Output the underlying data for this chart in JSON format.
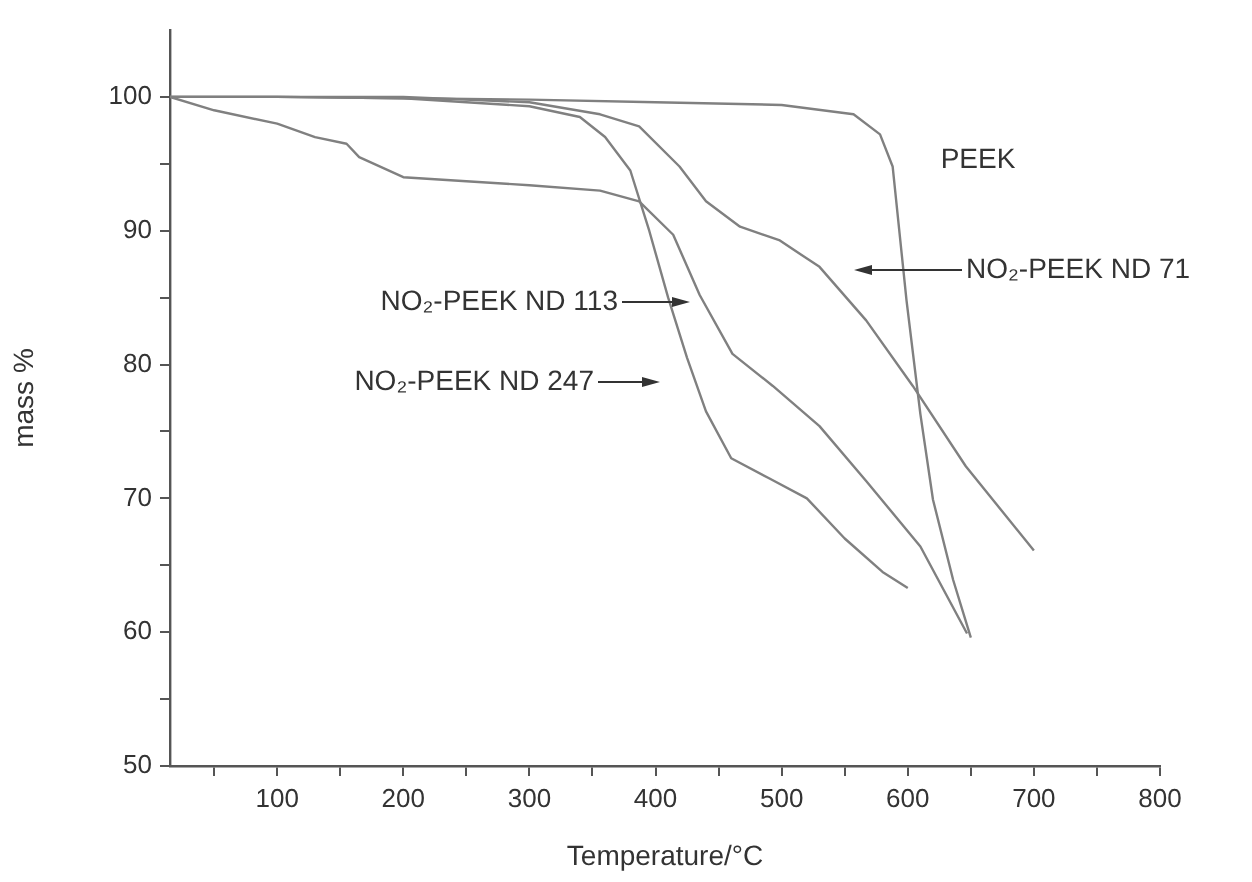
{
  "chart_data": {
    "type": "line",
    "xlabel": "Temperature/°C",
    "ylabel": "mass %",
    "xlim": [
      15,
      800
    ],
    "ylim": [
      50,
      105
    ],
    "xticks": [
      {
        "value": 50,
        "label": null
      },
      100,
      {
        "value": 150,
        "label": null
      },
      200,
      {
        "value": 250,
        "label": null
      },
      300,
      {
        "value": 350,
        "label": null
      },
      400,
      {
        "value": 450,
        "label": null
      },
      500,
      {
        "value": 550,
        "label": null
      },
      600,
      {
        "value": 650,
        "label": null
      },
      700,
      {
        "value": 750,
        "label": null
      },
      800
    ],
    "yticks": [
      50,
      {
        "value": 55,
        "label": null
      },
      60,
      {
        "value": 65,
        "label": null
      },
      70,
      {
        "value": 75,
        "label": null
      },
      80,
      {
        "value": 85,
        "label": null
      },
      90,
      {
        "value": 95,
        "label": null
      },
      100
    ],
    "marker": "none",
    "line_style": "solid",
    "series": [
      {
        "color": "#808080",
        "x": [
          15,
          100,
          200,
          300,
          400,
          500,
          557,
          578,
          588,
          599,
          610,
          620,
          636,
          650
        ],
        "values": [
          100,
          100,
          99.9,
          99.8,
          99.6,
          99.4,
          98.7,
          97.2,
          94.8,
          84.8,
          76.3,
          69.9,
          63.9,
          59.6
        ]
      },
      {
        "color": "#808080",
        "x": [
          15,
          100,
          200,
          300,
          356,
          387,
          419,
          440,
          467,
          498,
          530,
          567,
          604,
          646,
          700
        ],
        "values": [
          100,
          100,
          100,
          99.6,
          98.7,
          97.8,
          94.8,
          92.2,
          90.3,
          89.3,
          87.3,
          83.3,
          78.4,
          72.4,
          66.1
        ]
      },
      {
        "color": "#808080",
        "x": [
          15,
          50,
          100,
          130,
          155,
          165,
          200,
          250,
          300,
          356,
          387,
          414,
          435,
          461,
          493,
          530,
          567,
          610,
          647
        ],
        "values": [
          100,
          99,
          98,
          97,
          96.5,
          95.5,
          94,
          93.7,
          93.4,
          93,
          92.2,
          89.7,
          85.2,
          80.8,
          78.4,
          75.4,
          71.3,
          66.4,
          59.9
        ]
      },
      {
        "color": "#808080",
        "x": [
          15,
          100,
          200,
          300,
          340,
          360,
          380,
          395,
          410,
          425,
          440,
          460,
          490,
          520,
          550,
          580,
          600
        ],
        "values": [
          100,
          100,
          99.9,
          99.3,
          98.5,
          97,
          94.5,
          90,
          85,
          80.5,
          76.5,
          73,
          71.5,
          70,
          67,
          64.5,
          63.3
        ]
      }
    ],
    "annotations": [
      "PEEK",
      "NO₂-PEEK ND 71",
      "NO₂-PEEK ND 113",
      "NO₂-PEEK ND 247"
    ]
  }
}
